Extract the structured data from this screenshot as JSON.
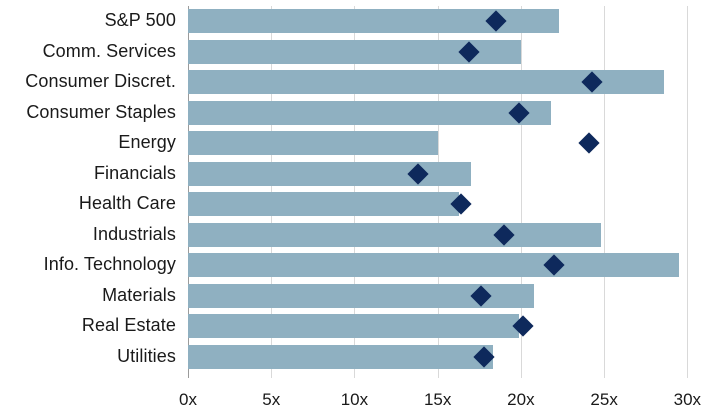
{
  "chart_data": {
    "type": "bar",
    "orientation": "horizontal",
    "title": "",
    "xlabel": "",
    "ylabel": "",
    "xlim": [
      0,
      31
    ],
    "grid": "vertical",
    "legend": "none",
    "categories": [
      "S&P 500",
      "Comm. Services",
      "Consumer Discret.",
      "Consumer Staples",
      "Energy",
      "Financials",
      "Health Care",
      "Industrials",
      "Info. Technology",
      "Materials",
      "Real Estate",
      "Utilities"
    ],
    "series": [
      {
        "name": "bars",
        "style": "bar",
        "values": [
          22.3,
          20.0,
          28.6,
          21.8,
          15.0,
          17.0,
          16.3,
          24.8,
          29.5,
          20.8,
          19.9,
          18.3
        ]
      },
      {
        "name": "diamond-markers",
        "style": "diamond",
        "values": [
          18.5,
          16.9,
          24.3,
          19.9,
          24.1,
          13.8,
          16.4,
          19.0,
          22.0,
          17.6,
          20.1,
          17.8
        ]
      }
    ],
    "x_ticks": [
      {
        "value": 0,
        "label": "0x"
      },
      {
        "value": 5,
        "label": "5x"
      },
      {
        "value": 10,
        "label": "10x"
      },
      {
        "value": 15,
        "label": "15x"
      },
      {
        "value": 20,
        "label": "20x"
      },
      {
        "value": 25,
        "label": "25x"
      },
      {
        "value": 30,
        "label": "30x"
      }
    ],
    "colors": {
      "bar": "#8fb0c1",
      "diamond": "#0e295c",
      "gridline": "#d9d9d9",
      "axis_line": "#9b9b9b",
      "text": "#1a1a1a",
      "background": "#ffffff"
    }
  }
}
